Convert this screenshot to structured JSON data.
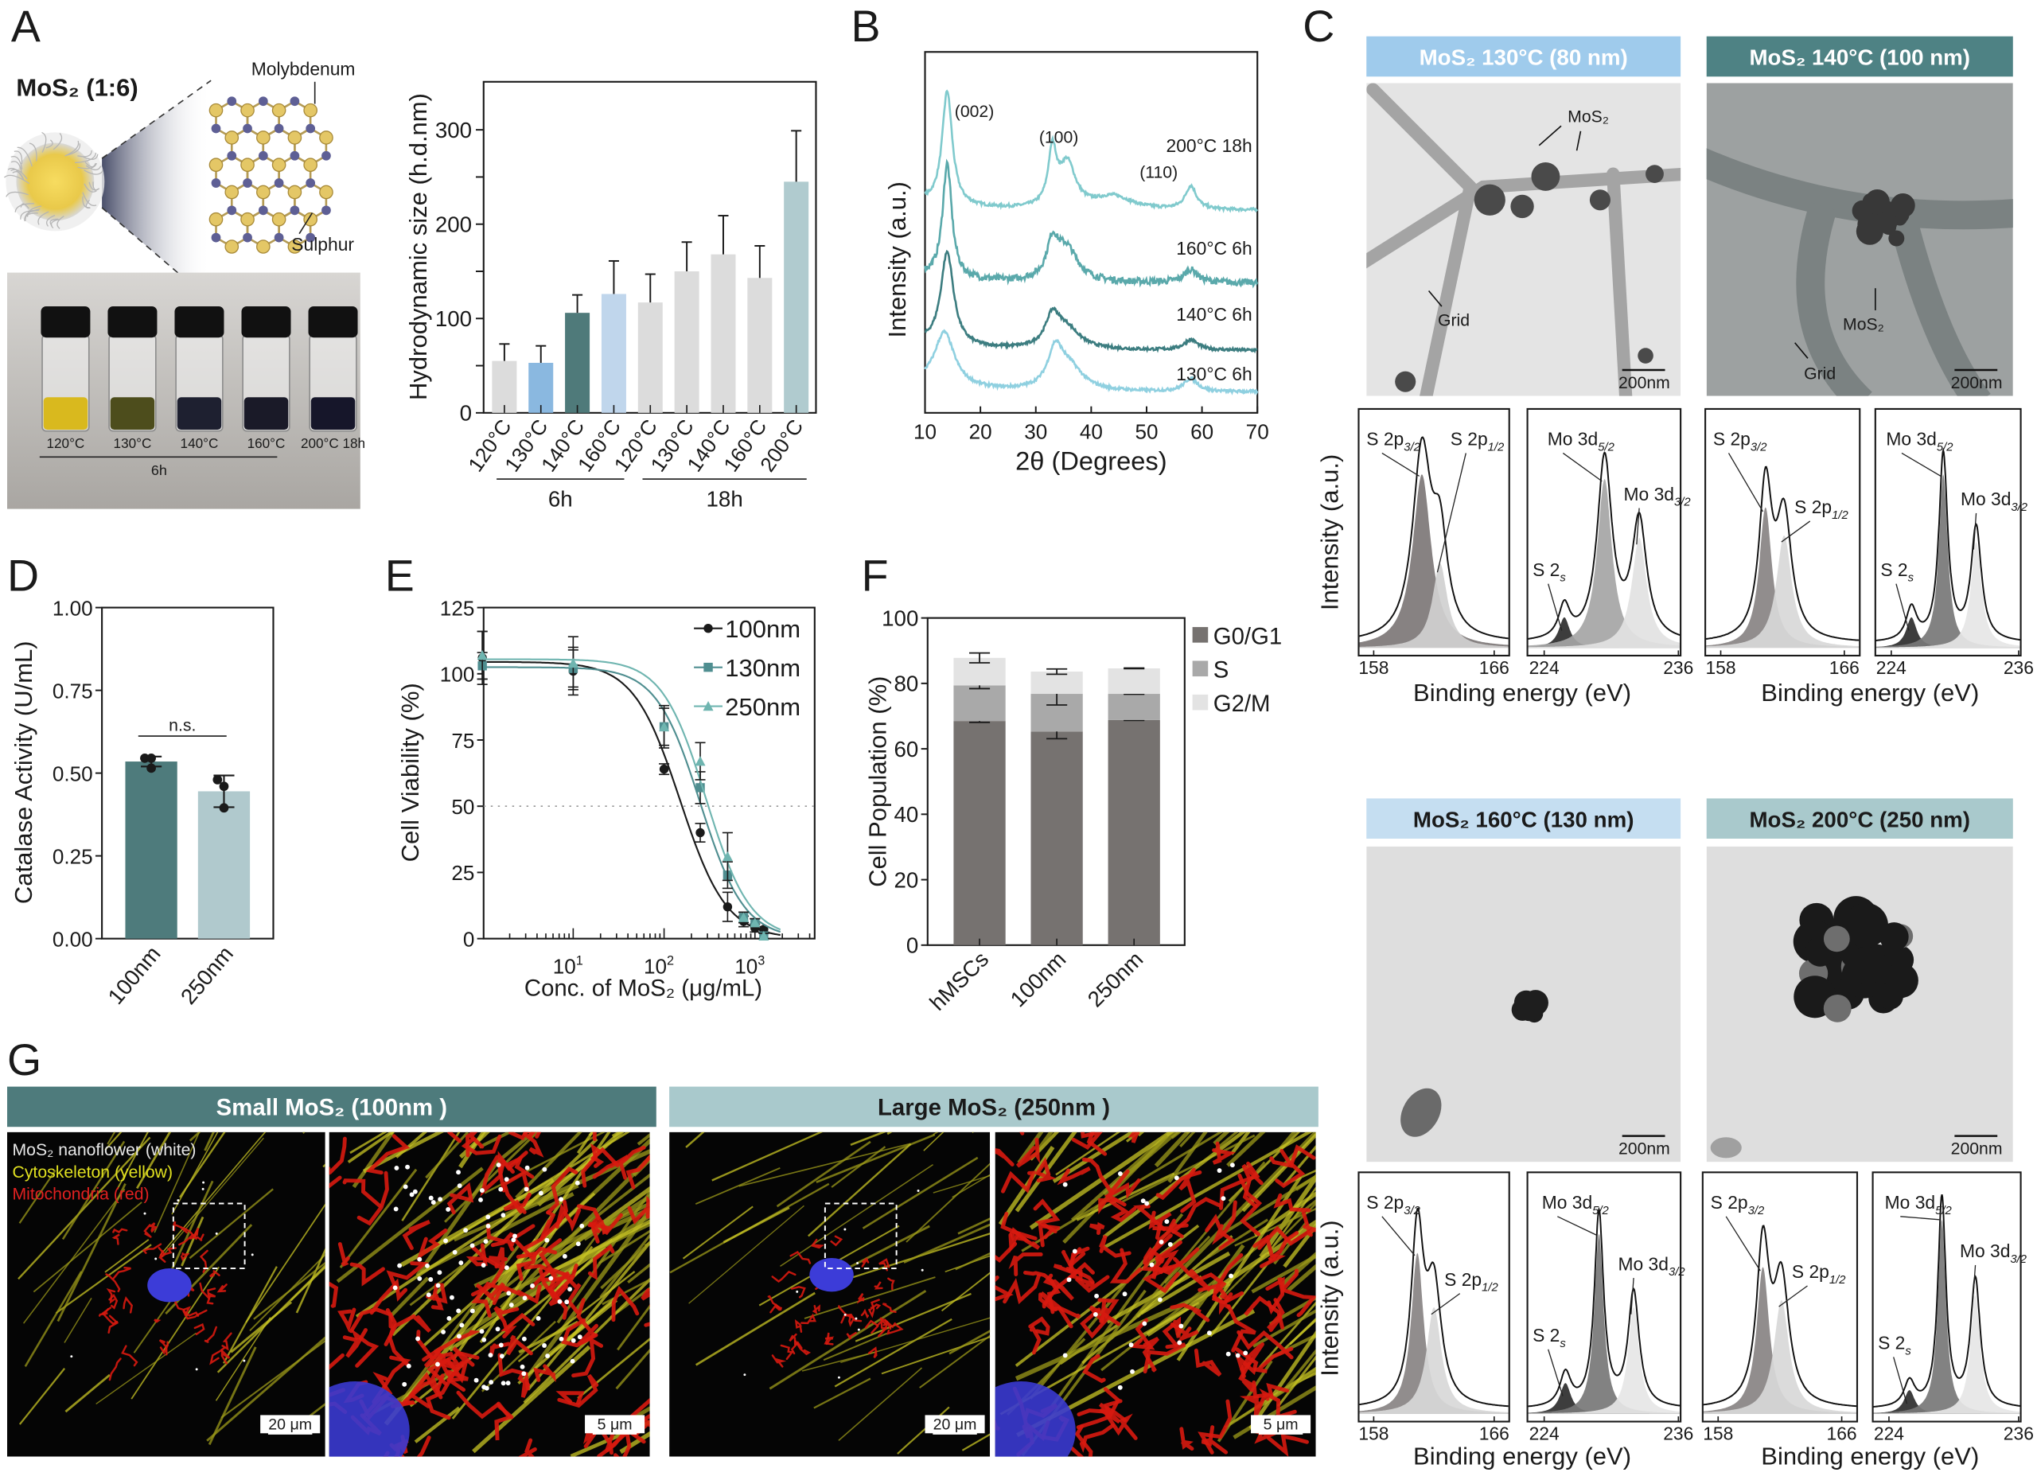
{
  "panel_labels": [
    "A",
    "B",
    "C",
    "D",
    "E",
    "F",
    "G"
  ],
  "panel_a": {
    "title": "MoS₂ (1:6)",
    "molybdenum_label": "Molybdenum",
    "sulphur_label": "Sulphur",
    "vials": [
      {
        "label": "120°C",
        "liquid": "#d9b91e"
      },
      {
        "label": "130°C",
        "liquid": "#4d4d1c"
      },
      {
        "label": "140°C",
        "liquid": "#1e2030"
      },
      {
        "label": "160°C",
        "liquid": "#1a1a28"
      },
      {
        "label": "200°C 18h",
        "liquid": "#16162a"
      }
    ],
    "vial_group_label": "6h"
  },
  "panel_c": {
    "headers": [
      "MoS₂ 130°C (80 nm)",
      "MoS₂ 140°C (100 nm)",
      "MoS₂ 160°C (130 nm)",
      "MoS₂ 200°C (250 nm)"
    ],
    "header_colors": [
      "#9fcbec",
      "#4e8284",
      "#c5def1",
      "#a9c9cc"
    ],
    "header_text_colors": [
      "#ffffff",
      "#ffffff",
      "#1a1a1a",
      "#1a1a1a"
    ],
    "tem_labels": {
      "mos2": "MoS₂",
      "grid": "Grid",
      "scale": "200nm"
    },
    "xps_ylabel": "Intensity (a.u.)",
    "xps_xlabel": "Binding energy (eV)"
  },
  "panel_g": {
    "headers": [
      "Small MoS₂ (100nm )",
      "Large MoS₂ (250nm )"
    ],
    "header_colors": [
      "#4e7b7c",
      "#a9c9cc"
    ],
    "legend": [
      {
        "text": "MoS₂ nanoflower (white)",
        "color": "#e8e8e8"
      },
      {
        "text": "Cytoskeleton (yellow)",
        "color": "#e0e020"
      },
      {
        "text": "Mitochondria (red)",
        "color": "#e02020"
      }
    ],
    "scale_bars": [
      "20 μm",
      "5 μm",
      "20 μm",
      "5 μm"
    ]
  },
  "chart_data": [
    {
      "id": "A",
      "type": "bar",
      "title": "",
      "xlabel": "",
      "ylabel": "Hydrodynamic size (h.d.nm)",
      "categories": [
        "120°C",
        "130°C",
        "140°C",
        "160°C",
        "120°C",
        "130°C",
        "140°C",
        "160°C",
        "200°C"
      ],
      "groups": [
        {
          "label": "6h",
          "members": [
            0,
            1,
            2,
            3
          ]
        },
        {
          "label": "18h",
          "members": [
            4,
            5,
            6,
            7,
            8
          ]
        }
      ],
      "values": [
        55,
        53,
        106,
        126,
        117,
        150,
        168,
        143,
        245
      ],
      "error_upper": [
        73,
        71,
        125,
        161,
        147,
        181,
        209,
        177,
        299
      ],
      "colors": [
        "#dcdcdc",
        "#8ab8e0",
        "#4f7a7a",
        "#c0d6ec",
        "#dcdcdc",
        "#dcdcdc",
        "#dcdcdc",
        "#dcdcdc",
        "#b0cbcf"
      ],
      "ylim": [
        0,
        350
      ],
      "yticks": [
        0,
        100,
        200,
        300
      ]
    },
    {
      "id": "B",
      "type": "line",
      "xlabel": "2θ (Degrees)",
      "ylabel": "Intensity (a.u.)",
      "xlim": [
        10,
        70
      ],
      "xticks": [
        10,
        20,
        30,
        40,
        50,
        60,
        70
      ],
      "ylim": [
        0,
        280
      ],
      "peak_labels": [
        {
          "text": "(002)",
          "x": 14
        },
        {
          "text": "(100)",
          "x": 33
        },
        {
          "text": "(110)",
          "x": 58
        }
      ],
      "series": [
        {
          "name": "200°C 18h",
          "color": "#80cacd",
          "offset": 156,
          "peaks": [
            [
              14,
              88,
              1.1
            ],
            [
              33,
              42,
              0.9
            ],
            [
              35.7,
              34,
              1.8
            ],
            [
              44,
              10,
              4
            ],
            [
              58,
              18,
              1.2
            ]
          ]
        },
        {
          "name": "160°C 6h",
          "color": "#5aa9ab",
          "offset": 100,
          "peaks": [
            [
              14,
              88,
              1.0
            ],
            [
              33,
              26,
              1.2
            ],
            [
              35.5,
              26,
              2.5
            ],
            [
              58,
              10,
              1.5
            ]
          ]
        },
        {
          "name": "140°C 6h",
          "color": "#3c7d80",
          "offset": 48,
          "peaks": [
            [
              14,
              72,
              1.4
            ],
            [
              33,
              22,
              1.5
            ],
            [
              35.5,
              16,
              3
            ],
            [
              58,
              8,
              1.5
            ]
          ]
        },
        {
          "name": "130°C 6h",
          "color": "#8fd0e0",
          "offset": 16,
          "peaks": [
            [
              13.5,
              42,
              2.2
            ],
            [
              33.5,
              28,
              1.6
            ],
            [
              36,
              18,
              3
            ],
            [
              58,
              10,
              1.5
            ]
          ]
        }
      ]
    },
    {
      "id": "C-XPS",
      "type": "line",
      "xlabel": "Binding energy (eV)",
      "ylabel": "Intensity (a.u.)",
      "panels": [
        {
          "sample": "130°C",
          "kind": "S",
          "xlim": [
            157,
            167
          ],
          "xticks": [
            158,
            166
          ],
          "components": [
            {
              "name": "S 2p",
              "sub": "3/2",
              "c": 161.2,
              "a": 0.74,
              "w": 0.75,
              "color": "#7d7777"
            },
            {
              "name": "S 2p",
              "sub": "1/2",
              "c": 162.4,
              "a": 0.36,
              "w": 0.6,
              "color": "#d0d0d0"
            }
          ]
        },
        {
          "sample": "130°C",
          "kind": "Mo",
          "xlim": [
            222.5,
            236.2
          ],
          "xticks": [
            224,
            236
          ],
          "components": [
            {
              "name": "S 2",
              "sub": "s",
              "c": 225.8,
              "a": 0.13,
              "w": 0.6,
              "color": "#2c2c2c"
            },
            {
              "name": "Mo 3d",
              "sub": "5/2",
              "c": 229.4,
              "a": 0.72,
              "w": 0.8,
              "color": "#a5a5a5"
            },
            {
              "name": "Mo 3d",
              "sub": "3/2",
              "c": 232.5,
              "a": 0.47,
              "w": 0.8,
              "color": "#e2e2e2"
            }
          ]
        },
        {
          "sample": "140°C",
          "kind": "S",
          "xlim": [
            157,
            167
          ],
          "xticks": [
            158,
            166
          ],
          "components": [
            {
              "name": "S 2p",
              "sub": "3/2",
              "c": 160.9,
              "a": 0.6,
              "w": 0.5,
              "color": "#888383"
            },
            {
              "name": "S 2p",
              "sub": "1/2",
              "c": 162.1,
              "a": 0.48,
              "w": 0.6,
              "color": "#d8d8d8"
            }
          ]
        },
        {
          "sample": "140°C",
          "kind": "Mo",
          "xlim": [
            222.5,
            236.2
          ],
          "xticks": [
            224,
            236
          ],
          "components": [
            {
              "name": "S 2",
              "sub": "s",
              "c": 225.9,
              "a": 0.13,
              "w": 0.6,
              "color": "#2c2c2c"
            },
            {
              "name": "Mo 3d",
              "sub": "5/2",
              "c": 228.9,
              "a": 0.74,
              "w": 0.5,
              "color": "#777777"
            },
            {
              "name": "Mo 3d",
              "sub": "3/2",
              "c": 232.0,
              "a": 0.45,
              "w": 0.6,
              "color": "#e6e6e6"
            }
          ]
        },
        {
          "sample": "160°C",
          "kind": "S",
          "xlim": [
            157,
            167
          ],
          "xticks": [
            158,
            166
          ],
          "components": [
            {
              "name": "S 2p",
              "sub": "3/2",
              "c": 160.9,
              "a": 0.68,
              "w": 0.5,
              "color": "#888383"
            },
            {
              "name": "S 2p",
              "sub": "1/2",
              "c": 162.0,
              "a": 0.45,
              "w": 0.6,
              "color": "#d8d8d8"
            }
          ]
        },
        {
          "sample": "160°C",
          "kind": "Mo",
          "xlim": [
            222.5,
            236.2
          ],
          "xticks": [
            224,
            236
          ],
          "components": [
            {
              "name": "S 2",
              "sub": "s",
              "c": 225.9,
              "a": 0.13,
              "w": 0.6,
              "color": "#2c2c2c"
            },
            {
              "name": "Mo 3d",
              "sub": "5/2",
              "c": 228.9,
              "a": 0.76,
              "w": 0.5,
              "color": "#777777"
            },
            {
              "name": "Mo 3d",
              "sub": "3/2",
              "c": 232.0,
              "a": 0.45,
              "w": 0.6,
              "color": "#e6e6e6"
            }
          ]
        },
        {
          "sample": "200°C",
          "kind": "S",
          "xlim": [
            157,
            167
          ],
          "xticks": [
            158,
            166
          ],
          "components": [
            {
              "name": "S 2p",
              "sub": "3/2",
              "c": 160.9,
              "a": 0.62,
              "w": 0.5,
              "color": "#888383"
            },
            {
              "name": "S 2p",
              "sub": "1/2",
              "c": 162.1,
              "a": 0.48,
              "w": 0.6,
              "color": "#d8d8d8"
            }
          ]
        },
        {
          "sample": "200°C",
          "kind": "Mo",
          "xlim": [
            222.5,
            236.2
          ],
          "xticks": [
            224,
            236
          ],
          "components": [
            {
              "name": "S 2",
              "sub": "s",
              "c": 225.9,
              "a": 0.1,
              "w": 0.6,
              "color": "#2c2c2c"
            },
            {
              "name": "Mo 3d",
              "sub": "5/2",
              "c": 228.9,
              "a": 0.82,
              "w": 0.45,
              "color": "#777777"
            },
            {
              "name": "Mo 3d",
              "sub": "3/2",
              "c": 232.0,
              "a": 0.5,
              "w": 0.55,
              "color": "#e6e6e6"
            }
          ]
        }
      ]
    },
    {
      "id": "D",
      "type": "bar",
      "ylabel": "Catalase Activity (U/mL)",
      "categories": [
        "100nm",
        "250nm"
      ],
      "values": [
        0.535,
        0.445
      ],
      "errors": [
        0.015,
        0.048
      ],
      "points": [
        [
          0.545,
          0.545,
          0.515
        ],
        [
          0.48,
          0.46,
          0.395
        ]
      ],
      "colors": [
        "#4e7b7c",
        "#b0c9cd"
      ],
      "ylim": [
        0,
        1.0
      ],
      "yticks": [
        "0.00",
        "0.25",
        "0.50",
        "0.75",
        "1.00"
      ],
      "annotation": "n.s."
    },
    {
      "id": "E",
      "type": "scatter",
      "xlabel": "Conc. of MoS₂ (μg/mL)",
      "ylabel": "Cell Viability (%)",
      "xscale": "log",
      "xticks": [
        {
          "v": 10,
          "base": "10",
          "exp": "1"
        },
        {
          "v": 100,
          "base": "10",
          "exp": "2"
        },
        {
          "v": 1000,
          "base": "10",
          "exp": "3"
        }
      ],
      "ylim": [
        0,
        125
      ],
      "yticks": [
        0,
        25,
        50,
        75,
        100,
        125
      ],
      "reference_line": 50,
      "x": [
        1,
        10,
        100,
        250,
        500,
        750,
        1000,
        1250
      ],
      "series": [
        {
          "name": "100nm",
          "color": "#1a1a1a",
          "marker": "circle",
          "values": [
            106,
            101,
            64,
            40,
            12,
            6.5,
            4,
            3.5
          ],
          "errors": [
            10,
            9,
            2,
            3.5,
            5.5,
            2,
            1.5,
            1
          ],
          "fit": {
            "top": 104.5,
            "ic50": 150,
            "hill": 1.7
          }
        },
        {
          "name": "130nm",
          "color": "#4f8e90",
          "marker": "square",
          "values": [
            103,
            102,
            80,
            57,
            24,
            8,
            6,
            1
          ],
          "errors": [
            5,
            7,
            7,
            6,
            5,
            2,
            1.5,
            1
          ],
          "fit": {
            "top": 102.5,
            "ic50": 250,
            "hill": 1.8
          }
        },
        {
          "name": "250nm",
          "color": "#6fb5b0",
          "marker": "triangle",
          "values": [
            107,
            104,
            80,
            67,
            31,
            8,
            6,
            1
          ],
          "errors": [
            9,
            10,
            8,
            7,
            9,
            2,
            1.5,
            1
          ],
          "fit": {
            "top": 105.5,
            "ic50": 290,
            "hill": 1.8
          }
        }
      ]
    },
    {
      "id": "F",
      "type": "bar",
      "stacked": true,
      "ylabel": "Cell Population (%)",
      "categories": [
        "hMSCs",
        "100nm",
        "250nm"
      ],
      "ylim": [
        0,
        100
      ],
      "yticks": [
        0,
        20,
        40,
        60,
        80,
        100
      ],
      "series": [
        {
          "name": "G0/G1",
          "color": "#767270",
          "values": [
            68.5,
            65.3,
            68.8
          ],
          "errors": [
            0.4,
            2.2,
            0.1
          ]
        },
        {
          "name": "S",
          "color": "#a9a9a9",
          "values": [
            10.9,
            11.5,
            8.0
          ],
          "errors": [
            1.0,
            3.4,
            0.1
          ]
        },
        {
          "name": "G2/M",
          "color": "#e3e3e3",
          "values": [
            8.4,
            6.8,
            7.8
          ],
          "errors": [
            1.5,
            0.8,
            0.1
          ]
        }
      ],
      "legend_position": "right"
    }
  ]
}
